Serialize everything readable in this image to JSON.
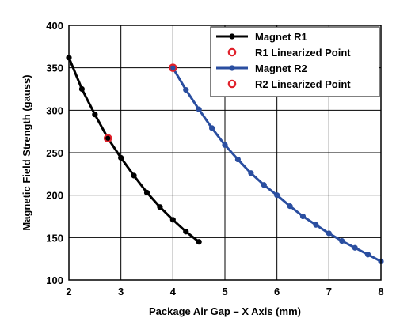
{
  "chart_data": {
    "type": "line",
    "title": "",
    "xlabel": "Package Air Gap – X Axis (mm)",
    "ylabel": "Magnetic Field Strength (gauss)",
    "xlim": [
      2,
      8
    ],
    "ylim": [
      100,
      400
    ],
    "xticks": [
      2,
      3,
      4,
      5,
      6,
      7,
      8
    ],
    "yticks": [
      100,
      150,
      200,
      250,
      300,
      350,
      400
    ],
    "grid": true,
    "legend_position": "top-right",
    "series": [
      {
        "name": "Magnet R1",
        "color": "#000000",
        "marker_color": "#000000",
        "x": [
          2.0,
          2.25,
          2.5,
          2.75,
          3.0,
          3.25,
          3.5,
          3.75,
          4.0,
          4.25,
          4.5
        ],
        "y": [
          362,
          325,
          295,
          267,
          244,
          223,
          203,
          186,
          171,
          157,
          145
        ]
      },
      {
        "name": "Magnet R2",
        "color": "#2a4ea0",
        "marker_color": "#2a4ea0",
        "x": [
          4.0,
          4.25,
          4.5,
          4.75,
          5.0,
          5.25,
          5.5,
          5.75,
          6.0,
          6.25,
          6.5,
          6.75,
          7.0,
          7.25,
          7.5,
          7.75,
          8.0
        ],
        "y": [
          350,
          324,
          301,
          279,
          259,
          242,
          226,
          212,
          200,
          187,
          175,
          165,
          155,
          146,
          138,
          130,
          122
        ]
      }
    ],
    "linearized_points": [
      {
        "name": "R1 Linearized Point",
        "x": 2.75,
        "y": 267,
        "color": "#e0202a"
      },
      {
        "name": "R2 Linearized Point",
        "x": 4.0,
        "y": 350,
        "color": "#e0202a"
      }
    ]
  }
}
